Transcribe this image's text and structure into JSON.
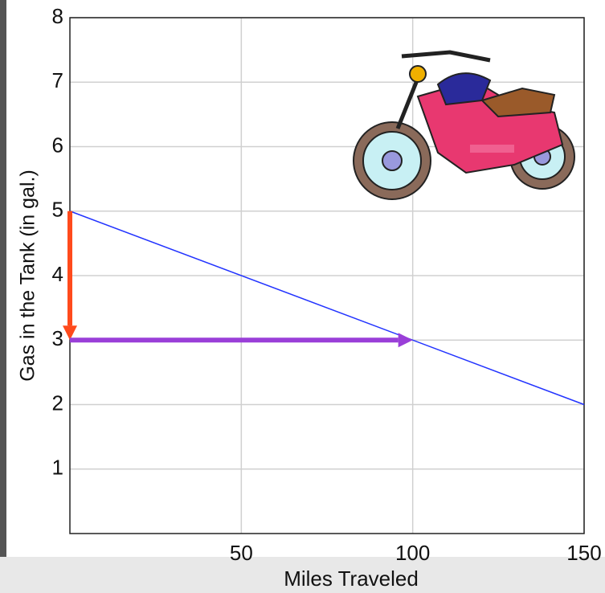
{
  "chart_data": {
    "type": "line",
    "x_label": "Miles Traveled",
    "y_label": "Gas in the Tank  (in gal.)",
    "x": [
      0,
      150
    ],
    "series": [
      {
        "color": "#2233ff",
        "values": [
          5,
          2
        ]
      }
    ],
    "arrows": [
      {
        "color": "#ff4a1c",
        "x": [
          0,
          0
        ],
        "y": [
          5,
          3
        ]
      },
      {
        "color": "#9a3fd8",
        "x": [
          0,
          100
        ],
        "y": [
          3,
          3
        ]
      }
    ],
    "xlim": [
      0,
      150
    ],
    "xticks": [
      50,
      100,
      150
    ],
    "ylim": [
      0,
      8
    ],
    "yticks": [
      1,
      2,
      3,
      4,
      5,
      6,
      7,
      8
    ],
    "grid": true
  }
}
